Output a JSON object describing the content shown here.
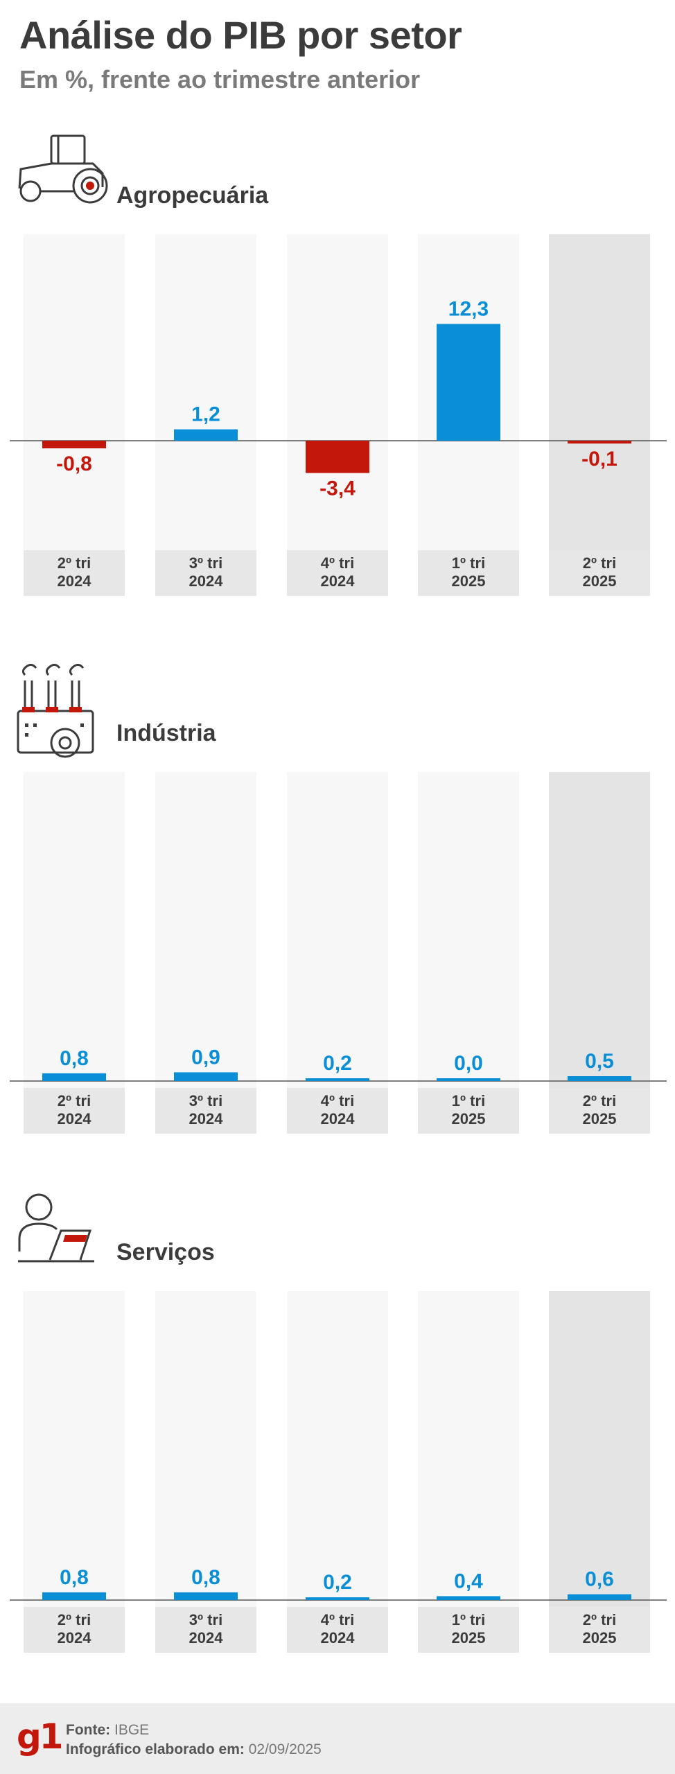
{
  "header": {
    "title": "Análise do PIB por setor",
    "subtitle": "Em %, frente ao trimestre anterior"
  },
  "colors": {
    "positive": "#0a8fd6",
    "negative": "#c4170c",
    "highlight_column": "#e4e4e4",
    "column": "#f7f7f8",
    "label_box": "#e7e7e7"
  },
  "icons": [
    "tractor-icon",
    "factory-gear-icon",
    "person-laptop-icon"
  ],
  "chart_data": [
    {
      "type": "bar",
      "title": "Agropecuária",
      "categories": [
        "2º tri\n2024",
        "3º tri\n2024",
        "4º tri\n2024",
        "1º tri\n2025",
        "2º tri\n2025"
      ],
      "values": [
        -0.8,
        1.2,
        -3.4,
        12.3,
        -0.1
      ],
      "value_labels": [
        "-0,8",
        "1,2",
        "-3,4",
        "12,3",
        "-0,1"
      ],
      "highlight_index": 4
    },
    {
      "type": "bar",
      "title": "Indústria",
      "categories": [
        "2º tri\n2024",
        "3º tri\n2024",
        "4º tri\n2024",
        "1º tri\n2025",
        "2º tri\n2025"
      ],
      "values": [
        0.8,
        0.9,
        0.2,
        0.0,
        0.5
      ],
      "value_labels": [
        "0,8",
        "0,9",
        "0,2",
        "0,0",
        "0,5"
      ],
      "highlight_index": 4
    },
    {
      "type": "bar",
      "title": "Serviços",
      "categories": [
        "2º tri\n2024",
        "3º tri\n2024",
        "4º tri\n2024",
        "1º tri\n2025",
        "2º tri\n2025"
      ],
      "values": [
        0.8,
        0.8,
        0.2,
        0.4,
        0.6
      ],
      "value_labels": [
        "0,8",
        "0,8",
        "0,2",
        "0,4",
        "0,6"
      ],
      "highlight_index": 4
    }
  ],
  "footer": {
    "logo": "g1",
    "source_label": "Fonte:",
    "source_value": "IBGE",
    "date_label": "Infográfico elaborado em:",
    "date_value": "02/09/2025"
  }
}
